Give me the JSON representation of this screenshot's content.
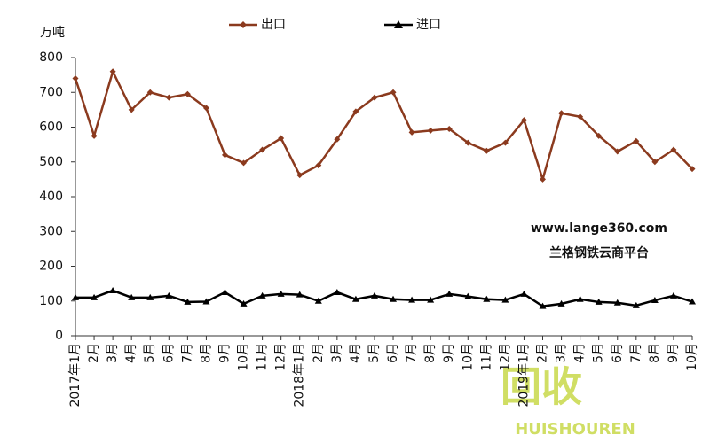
{
  "chart_data": {
    "type": "line",
    "y_label": "万吨",
    "categories": [
      "2017年1月",
      "2月",
      "3月",
      "4月",
      "5月",
      "6月",
      "7月",
      "8月",
      "9月",
      "10月",
      "11月",
      "12月",
      "2018年1月",
      "2月",
      "3月",
      "4月",
      "5月",
      "6月",
      "7月",
      "8月",
      "9月",
      "10月",
      "11月",
      "12月",
      "2019年1月",
      "2月",
      "3月",
      "4月",
      "5月",
      "6月",
      "7月",
      "8月",
      "9月",
      "10月"
    ],
    "series": [
      {
        "name": "出口",
        "color": "#8b3a1e",
        "marker": "diamond",
        "values": [
          740,
          575,
          760,
          650,
          700,
          685,
          695,
          655,
          520,
          497,
          535,
          568,
          462,
          490,
          565,
          645,
          685,
          700,
          585,
          590,
          595,
          555,
          532,
          555,
          620,
          450,
          640,
          630,
          575,
          530,
          560,
          500,
          535,
          480
        ]
      },
      {
        "name": "进口",
        "color": "#000000",
        "marker": "triangle",
        "values": [
          110,
          110,
          130,
          110,
          110,
          115,
          97,
          98,
          125,
          92,
          115,
          120,
          118,
          100,
          125,
          105,
          115,
          105,
          103,
          103,
          120,
          113,
          105,
          103,
          120,
          85,
          92,
          105,
          97,
          95,
          87,
          102,
          115,
          98
        ]
      }
    ],
    "ylim": [
      0,
      800
    ],
    "yticks": [
      0,
      100,
      200,
      300,
      400,
      500,
      600,
      700,
      800
    ],
    "annotations": [
      "www.lange360.com",
      "兰格钢铁云商平台",
      "回收",
      "HUISHOUREN"
    ]
  }
}
